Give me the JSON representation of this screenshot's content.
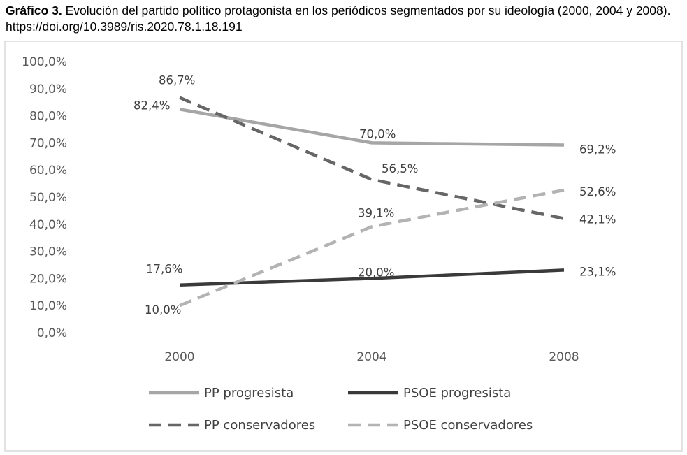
{
  "caption": {
    "label": "Gráfico 3.",
    "text": " Evolución del partido político protagonista en los periódicos segmentados por su ideología (2000, 2004 y 2008). https://doi.org/10.3989/ris.2020.78.1.18.191"
  },
  "chart_data": {
    "type": "line",
    "x": [
      "2000",
      "2004",
      "2008"
    ],
    "ylim": [
      0,
      100
    ],
    "yticks": [
      "0,0%",
      "10,0%",
      "20,0%",
      "30,0%",
      "40,0%",
      "50,0%",
      "60,0%",
      "70,0%",
      "80,0%",
      "90,0%",
      "100,0%"
    ],
    "grid": false,
    "legend_position": "bottom",
    "series": [
      {
        "name": "PP progresista",
        "values": [
          82.4,
          70.0,
          69.2
        ],
        "labels": [
          "82,4%",
          "70,0%",
          "69,2%"
        ],
        "color": "#a6a6a6",
        "style": "solid"
      },
      {
        "name": "PSOE progresista",
        "values": [
          17.6,
          20.0,
          23.1
        ],
        "labels": [
          "17,6%",
          "20,0%",
          "23,1%"
        ],
        "color": "#3a3a3a",
        "style": "solid"
      },
      {
        "name": "PP conservadores",
        "values": [
          86.7,
          56.5,
          42.1
        ],
        "labels": [
          "86,7%",
          "56,5%",
          "42,1%"
        ],
        "color": "#666666",
        "style": "dashed"
      },
      {
        "name": "PSOE conservadores",
        "values": [
          10.0,
          39.1,
          52.6
        ],
        "labels": [
          "10,0%",
          "39,1%",
          "52,6%"
        ],
        "color": "#b3b3b3",
        "style": "dashed"
      }
    ]
  }
}
